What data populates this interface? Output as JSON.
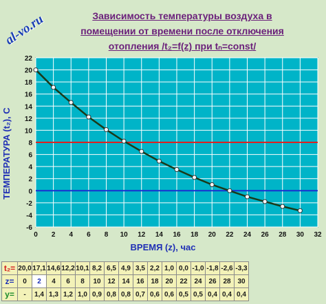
{
  "watermark": "al-vo.ru",
  "title": {
    "line1": "Зависимость температуры воздуха в",
    "line2": "помещении от времени после отключения",
    "line3": "отопления /t₂=f(z) при tₙ=const/"
  },
  "colors": {
    "background": "#d6e8c9",
    "plot_area": "#00b4c8",
    "grid": "#ffffff",
    "curve": "#1a3a1a",
    "red_line": "#e02020",
    "blue_line": "#1a2fd0",
    "title": "#6a1f7a",
    "axis_title": "#1f2fb5"
  },
  "chart_data": {
    "type": "line",
    "xlabel": "ВРЕМЯ (z), час",
    "ylabel": "ТЕМПЕРАТУРА (t₂), С",
    "xlim": [
      0,
      32
    ],
    "ylim": [
      -6,
      22
    ],
    "xticks": [
      "0",
      "2",
      "4",
      "6",
      "8",
      "10",
      "12",
      "14",
      "16",
      "18",
      "20",
      "22",
      "24",
      "26",
      "28",
      "30",
      "32"
    ],
    "yticks": [
      "-6",
      "-4",
      "-2",
      "0",
      "2",
      "4",
      "6",
      "8",
      "10",
      "12",
      "14",
      "16",
      "18",
      "20",
      "22"
    ],
    "grid": true,
    "series": [
      {
        "x": [
          0,
          2,
          4,
          6,
          8,
          10,
          12,
          14,
          16,
          18,
          20,
          22,
          24,
          26,
          28,
          30
        ],
        "y": [
          20.0,
          17.1,
          14.6,
          12.2,
          10.1,
          8.2,
          6.5,
          4.9,
          3.5,
          2.2,
          1.0,
          0.0,
          -1.0,
          -1.8,
          -2.6,
          -3.3
        ]
      }
    ],
    "hlines": [
      {
        "y": 8,
        "color": "#e02020"
      },
      {
        "y": 0,
        "color": "#1a2fd0"
      }
    ]
  },
  "table": {
    "rows": [
      {
        "label": "t₂=",
        "cls": "row-t",
        "values": [
          "20,0",
          "17,1",
          "14,6",
          "12,2",
          "10,1",
          "8,2",
          "6,5",
          "4,9",
          "3,5",
          "2,2",
          "1,0",
          "0,0",
          "-1,0",
          "-1,8",
          "-2,6",
          "-3,3"
        ]
      },
      {
        "label": "z=",
        "cls": "row-z",
        "values": [
          "0",
          "2",
          "4",
          "6",
          "8",
          "10",
          "12",
          "14",
          "16",
          "18",
          "20",
          "22",
          "24",
          "26",
          "28",
          "30"
        ]
      },
      {
        "label": "y=",
        "cls": "row-y",
        "values": [
          "-",
          "1,4",
          "1,3",
          "1,2",
          "1,0",
          "0,9",
          "0,8",
          "0,8",
          "0,7",
          "0,6",
          "0,6",
          "0,5",
          "0,5",
          "0,4",
          "0,4",
          "0,4"
        ]
      }
    ],
    "highlight": {
      "row": 1,
      "col": 1
    }
  }
}
